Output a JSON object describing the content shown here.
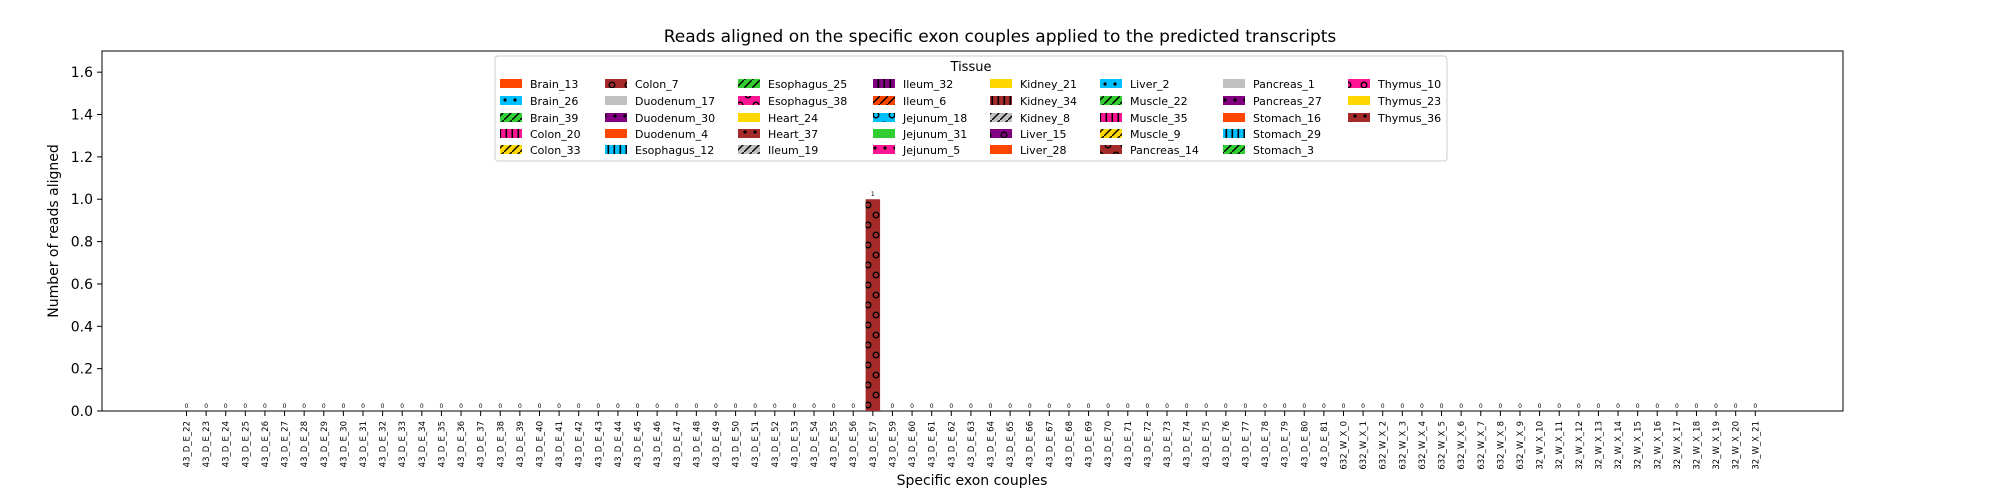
{
  "chart_data": {
    "type": "bar",
    "title": "Reads aligned on the specific exon couples applied to the predicted transcripts",
    "xlabel": "Specific exon couples",
    "ylabel": "Number of reads aligned",
    "ylim": [
      0,
      1.7
    ],
    "yticks": [
      "0.0",
      "0.2",
      "0.4",
      "0.6",
      "0.8",
      "1.0",
      "1.2",
      "1.4",
      "1.6"
    ],
    "grid": false,
    "legend_position": "top-center",
    "legend_title": "Tissue",
    "legend_entries": [
      {
        "name": "Brain_13",
        "color": "#ff4500",
        "pattern": "none"
      },
      {
        "name": "Brain_26",
        "color": "#00bfff",
        "pattern": "dots"
      },
      {
        "name": "Brain_39",
        "color": "#32cd32",
        "pattern": "slash"
      },
      {
        "name": "Colon_20",
        "color": "#ff1493",
        "pattern": "bars"
      },
      {
        "name": "Colon_33",
        "color": "#ffd700",
        "pattern": "slash"
      },
      {
        "name": "Colon_7",
        "color": "#a52a2a",
        "pattern": "rings"
      },
      {
        "name": "Duodenum_17",
        "color": "#c0c0c0",
        "pattern": "none"
      },
      {
        "name": "Duodenum_30",
        "color": "#800080",
        "pattern": "dots"
      },
      {
        "name": "Duodenum_4",
        "color": "#ff4500",
        "pattern": "none"
      },
      {
        "name": "Esophagus_12",
        "color": "#00bfff",
        "pattern": "bars"
      },
      {
        "name": "Esophagus_25",
        "color": "#32cd32",
        "pattern": "slash"
      },
      {
        "name": "Esophagus_38",
        "color": "#ff1493",
        "pattern": "rings"
      },
      {
        "name": "Heart_24",
        "color": "#ffd700",
        "pattern": "none"
      },
      {
        "name": "Heart_37",
        "color": "#a52a2a",
        "pattern": "dots"
      },
      {
        "name": "Ileum_19",
        "color": "#c0c0c0",
        "pattern": "slash"
      },
      {
        "name": "Ileum_32",
        "color": "#800080",
        "pattern": "bars"
      },
      {
        "name": "Ileum_6",
        "color": "#ff4500",
        "pattern": "slash"
      },
      {
        "name": "Jejunum_18",
        "color": "#00bfff",
        "pattern": "rings"
      },
      {
        "name": "Jejunum_31",
        "color": "#32cd32",
        "pattern": "none"
      },
      {
        "name": "Jejunum_5",
        "color": "#ff1493",
        "pattern": "dots"
      },
      {
        "name": "Kidney_21",
        "color": "#ffd700",
        "pattern": "none"
      },
      {
        "name": "Kidney_34",
        "color": "#a52a2a",
        "pattern": "bars"
      },
      {
        "name": "Kidney_8",
        "color": "#c0c0c0",
        "pattern": "slash"
      },
      {
        "name": "Liver_15",
        "color": "#800080",
        "pattern": "rings"
      },
      {
        "name": "Liver_28",
        "color": "#ff4500",
        "pattern": "none"
      },
      {
        "name": "Liver_2",
        "color": "#00bfff",
        "pattern": "dots"
      },
      {
        "name": "Muscle_22",
        "color": "#32cd32",
        "pattern": "slash"
      },
      {
        "name": "Muscle_35",
        "color": "#ff1493",
        "pattern": "bars"
      },
      {
        "name": "Muscle_9",
        "color": "#ffd700",
        "pattern": "slash"
      },
      {
        "name": "Pancreas_14",
        "color": "#a52a2a",
        "pattern": "rings"
      },
      {
        "name": "Pancreas_1",
        "color": "#c0c0c0",
        "pattern": "none"
      },
      {
        "name": "Pancreas_27",
        "color": "#800080",
        "pattern": "dots"
      },
      {
        "name": "Stomach_16",
        "color": "#ff4500",
        "pattern": "none"
      },
      {
        "name": "Stomach_29",
        "color": "#00bfff",
        "pattern": "bars"
      },
      {
        "name": "Stomach_3",
        "color": "#32cd32",
        "pattern": "slash"
      },
      {
        "name": "Thymus_10",
        "color": "#ff1493",
        "pattern": "rings"
      },
      {
        "name": "Thymus_23",
        "color": "#ffd700",
        "pattern": "none"
      },
      {
        "name": "Thymus_36",
        "color": "#a52a2a",
        "pattern": "dots"
      }
    ],
    "categories": [
      "43_D_E_22",
      "43_D_E_23",
      "43_D_E_24",
      "43_D_E_25",
      "43_D_E_26",
      "43_D_E_27",
      "43_D_E_28",
      "43_D_E_29",
      "43_D_E_30",
      "43_D_E_31",
      "43_D_E_32",
      "43_D_E_33",
      "43_D_E_34",
      "43_D_E_35",
      "43_D_E_36",
      "43_D_E_37",
      "43_D_E_38",
      "43_D_E_39",
      "43_D_E_40",
      "43_D_E_41",
      "43_D_E_42",
      "43_D_E_43",
      "43_D_E_44",
      "43_D_E_45",
      "43_D_E_46",
      "43_D_E_47",
      "43_D_E_48",
      "43_D_E_49",
      "43_D_E_50",
      "43_D_E_51",
      "43_D_E_52",
      "43_D_E_53",
      "43_D_E_54",
      "43_D_E_55",
      "43_D_E_56",
      "43_D_E_57",
      "43_D_E_59",
      "43_D_E_60",
      "43_D_E_61",
      "43_D_E_62",
      "43_D_E_63",
      "43_D_E_64",
      "43_D_E_65",
      "43_D_E_66",
      "43_D_E_67",
      "43_D_E_68",
      "43_D_E_69",
      "43_D_E_70",
      "43_D_E_71",
      "43_D_E_72",
      "43_D_E_73",
      "43_D_E_74",
      "43_D_E_75",
      "43_D_E_76",
      "43_D_E_77",
      "43_D_E_78",
      "43_D_E_79",
      "43_D_E_80",
      "43_D_E_81",
      "632_W_X_0",
      "632_W_X_1",
      "632_W_X_2",
      "632_W_X_3",
      "632_W_X_4",
      "632_W_X_5",
      "632_W_X_6",
      "632_W_X_7",
      "632_W_X_8",
      "632_W_X_9",
      "32_W_X_10",
      "32_W_X_11",
      "32_W_X_12",
      "32_W_X_13",
      "32_W_X_14",
      "32_W_X_15",
      "32_W_X_16",
      "32_W_X_17",
      "32_W_X_18",
      "32_W_X_19",
      "32_W_X_20",
      "32_W_X_21"
    ],
    "values": [
      0,
      0,
      0,
      0,
      0,
      0,
      0,
      0,
      0,
      0,
      0,
      0,
      0,
      0,
      0,
      0,
      0,
      0,
      0,
      0,
      0,
      0,
      0,
      0,
      0,
      0,
      0,
      0,
      0,
      0,
      0,
      0,
      0,
      0,
      0,
      1,
      0,
      0,
      0,
      0,
      0,
      0,
      0,
      0,
      0,
      0,
      0,
      0,
      0,
      0,
      0,
      0,
      0,
      0,
      0,
      0,
      0,
      0,
      0,
      0,
      0,
      0,
      0,
      0,
      0,
      0,
      0,
      0,
      0,
      0,
      0,
      0,
      0,
      0,
      0,
      0,
      0,
      0,
      0,
      0,
      0
    ],
    "value_labels": [
      "0",
      "0",
      "0",
      "0",
      "0",
      "0",
      "0",
      "0",
      "0",
      "0",
      "0",
      "0",
      "0",
      "0",
      "0",
      "0",
      "0",
      "0",
      "0",
      "0",
      "0",
      "0",
      "0",
      "0",
      "0",
      "0",
      "0",
      "0",
      "0",
      "0",
      "0",
      "0",
      "0",
      "0",
      "0",
      "1",
      "0",
      "0",
      "0",
      "0",
      "0",
      "0",
      "0",
      "0",
      "0",
      "0",
      "0",
      "0",
      "0",
      "0",
      "0",
      "0",
      "0",
      "0",
      "0",
      "0",
      "0",
      "0",
      "0",
      "0",
      "0",
      "0",
      "0",
      "0",
      "0",
      "0",
      "0",
      "0",
      "0",
      "0",
      "0",
      "0",
      "0",
      "0",
      "0",
      "0",
      "0",
      "0",
      "0",
      "0",
      "0"
    ],
    "bar_color": "#a52a2a",
    "bar_pattern": "rings"
  }
}
